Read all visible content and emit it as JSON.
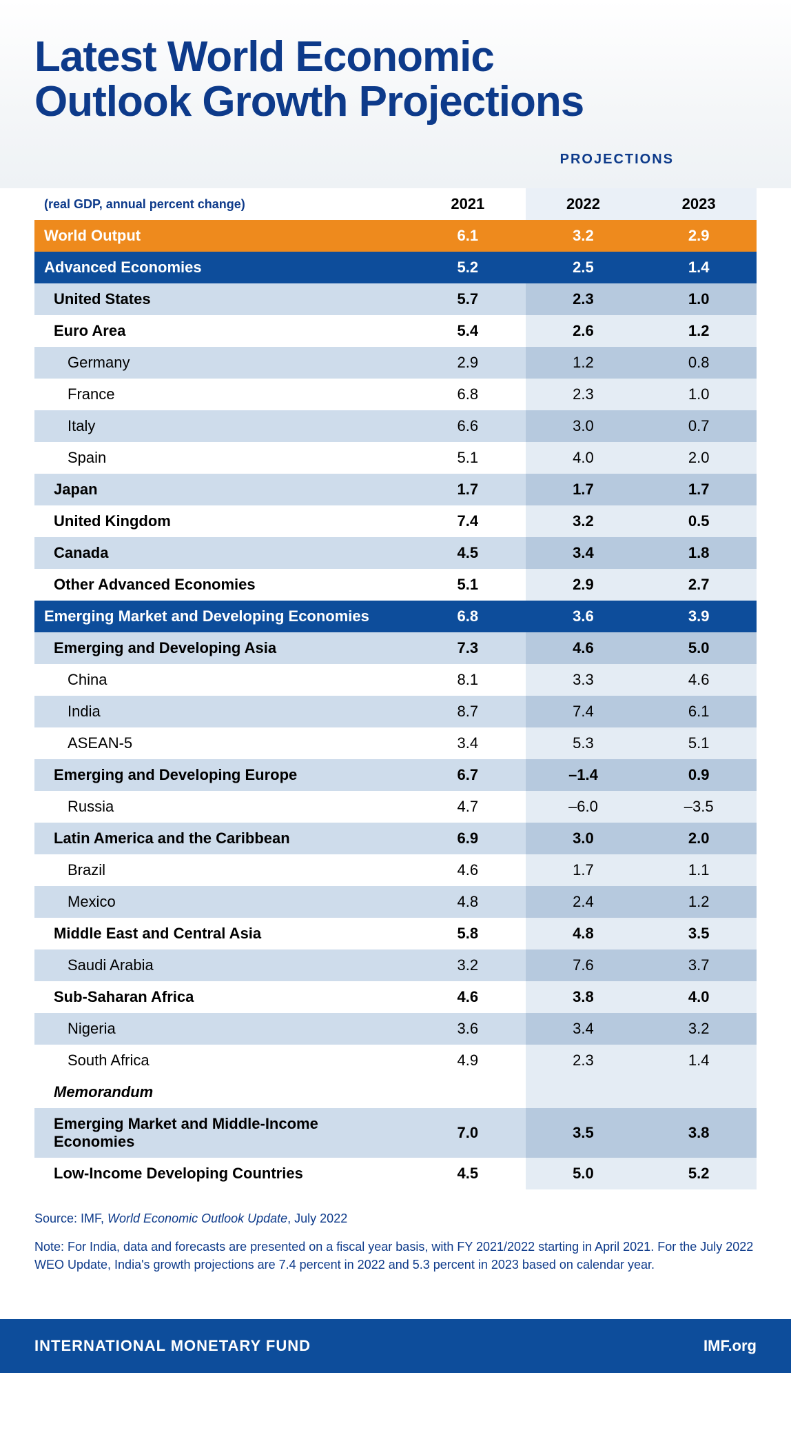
{
  "title_line1": "Latest World Economic",
  "title_line2": "Outlook Growth Projections",
  "projections_label": "PROJECTIONS",
  "subtitle": "(real GDP, annual percent change)",
  "columns": [
    "2021",
    "2022",
    "2023"
  ],
  "colors": {
    "title": "#0d3a8a",
    "orange_row": "#ee8a1d",
    "darkblue_row": "#0d4d9b",
    "light_row": "#cedceb",
    "light_proj": "#b6c9de",
    "white_proj": "#e4ecf4",
    "footer_bg": "#0d4d9b"
  },
  "rows": [
    {
      "label": "World Output",
      "v": [
        "6.1",
        "3.2",
        "2.9"
      ],
      "style": "orange",
      "indent": 0,
      "bold": true
    },
    {
      "label": "Advanced Economies",
      "v": [
        "5.2",
        "2.5",
        "1.4"
      ],
      "style": "darkblue",
      "indent": 0,
      "bold": true
    },
    {
      "label": "United States",
      "v": [
        "5.7",
        "2.3",
        "1.0"
      ],
      "style": "light",
      "indent": 1,
      "bold": true
    },
    {
      "label": "Euro Area",
      "v": [
        "5.4",
        "2.6",
        "1.2"
      ],
      "style": "white",
      "indent": 1,
      "bold": true
    },
    {
      "label": "Germany",
      "v": [
        "2.9",
        "1.2",
        "0.8"
      ],
      "style": "light",
      "indent": 2,
      "bold": false
    },
    {
      "label": "France",
      "v": [
        "6.8",
        "2.3",
        "1.0"
      ],
      "style": "white",
      "indent": 2,
      "bold": false
    },
    {
      "label": "Italy",
      "v": [
        "6.6",
        "3.0",
        "0.7"
      ],
      "style": "light",
      "indent": 2,
      "bold": false
    },
    {
      "label": "Spain",
      "v": [
        "5.1",
        "4.0",
        "2.0"
      ],
      "style": "white",
      "indent": 2,
      "bold": false
    },
    {
      "label": "Japan",
      "v": [
        "1.7",
        "1.7",
        "1.7"
      ],
      "style": "light",
      "indent": 1,
      "bold": true
    },
    {
      "label": "United Kingdom",
      "v": [
        "7.4",
        "3.2",
        "0.5"
      ],
      "style": "white",
      "indent": 1,
      "bold": true
    },
    {
      "label": "Canada",
      "v": [
        "4.5",
        "3.4",
        "1.8"
      ],
      "style": "light",
      "indent": 1,
      "bold": true
    },
    {
      "label": "Other Advanced Economies",
      "v": [
        "5.1",
        "2.9",
        "2.7"
      ],
      "style": "white",
      "indent": 1,
      "bold": true
    },
    {
      "label": "Emerging Market and Developing Economies",
      "v": [
        "6.8",
        "3.6",
        "3.9"
      ],
      "style": "darkblue",
      "indent": 0,
      "bold": true
    },
    {
      "label": "Emerging and Developing Asia",
      "v": [
        "7.3",
        "4.6",
        "5.0"
      ],
      "style": "light",
      "indent": 1,
      "bold": true
    },
    {
      "label": "China",
      "v": [
        "8.1",
        "3.3",
        "4.6"
      ],
      "style": "white",
      "indent": 2,
      "bold": false
    },
    {
      "label": "India",
      "v": [
        "8.7",
        "7.4",
        "6.1"
      ],
      "style": "light",
      "indent": 2,
      "bold": false
    },
    {
      "label": "ASEAN-5",
      "v": [
        "3.4",
        "5.3",
        "5.1"
      ],
      "style": "white",
      "indent": 2,
      "bold": false
    },
    {
      "label": "Emerging and Developing Europe",
      "v": [
        "6.7",
        "–1.4",
        "0.9"
      ],
      "style": "light",
      "indent": 1,
      "bold": true
    },
    {
      "label": "Russia",
      "v": [
        "4.7",
        "–6.0",
        "–3.5"
      ],
      "style": "white",
      "indent": 2,
      "bold": false
    },
    {
      "label": "Latin America and the Caribbean",
      "v": [
        "6.9",
        "3.0",
        "2.0"
      ],
      "style": "light",
      "indent": 1,
      "bold": true
    },
    {
      "label": "Brazil",
      "v": [
        "4.6",
        "1.7",
        "1.1"
      ],
      "style": "white",
      "indent": 2,
      "bold": false
    },
    {
      "label": "Mexico",
      "v": [
        "4.8",
        "2.4",
        "1.2"
      ],
      "style": "light",
      "indent": 2,
      "bold": false
    },
    {
      "label": "Middle East and Central Asia",
      "v": [
        "5.8",
        "4.8",
        "3.5"
      ],
      "style": "white",
      "indent": 1,
      "bold": true
    },
    {
      "label": "Saudi Arabia",
      "v": [
        "3.2",
        "7.6",
        "3.7"
      ],
      "style": "light",
      "indent": 2,
      "bold": false
    },
    {
      "label": "Sub-Saharan Africa",
      "v": [
        "4.6",
        "3.8",
        "4.0"
      ],
      "style": "white",
      "indent": 1,
      "bold": true
    },
    {
      "label": "Nigeria",
      "v": [
        "3.6",
        "3.4",
        "3.2"
      ],
      "style": "light",
      "indent": 2,
      "bold": false
    },
    {
      "label": "South Africa",
      "v": [
        "4.9",
        "2.3",
        "1.4"
      ],
      "style": "white",
      "indent": 2,
      "bold": false
    },
    {
      "label": "Memorandum",
      "v": [
        "",
        "",
        ""
      ],
      "style": "white",
      "indent": 1,
      "bold": true,
      "italic": true
    },
    {
      "label": "Emerging Market and Middle-Income Economies",
      "v": [
        "7.0",
        "3.5",
        "3.8"
      ],
      "style": "light",
      "indent": 1,
      "bold": true
    },
    {
      "label": "Low-Income Developing Countries",
      "v": [
        "4.5",
        "5.0",
        "5.2"
      ],
      "style": "white",
      "indent": 1,
      "bold": true
    }
  ],
  "source_prefix": "Source: IMF, ",
  "source_italic": "World Economic Outlook Update",
  "source_suffix": ", July 2022",
  "note": "Note: For India, data and forecasts are presented on a fiscal year basis, with FY 2021/2022 starting in April 2021. For the July 2022 WEO Update, India's growth projections are 7.4 percent in 2022 and 5.3 percent in 2023 based on calendar year.",
  "footer_left": "INTERNATIONAL MONETARY FUND",
  "footer_right": "IMF.org"
}
